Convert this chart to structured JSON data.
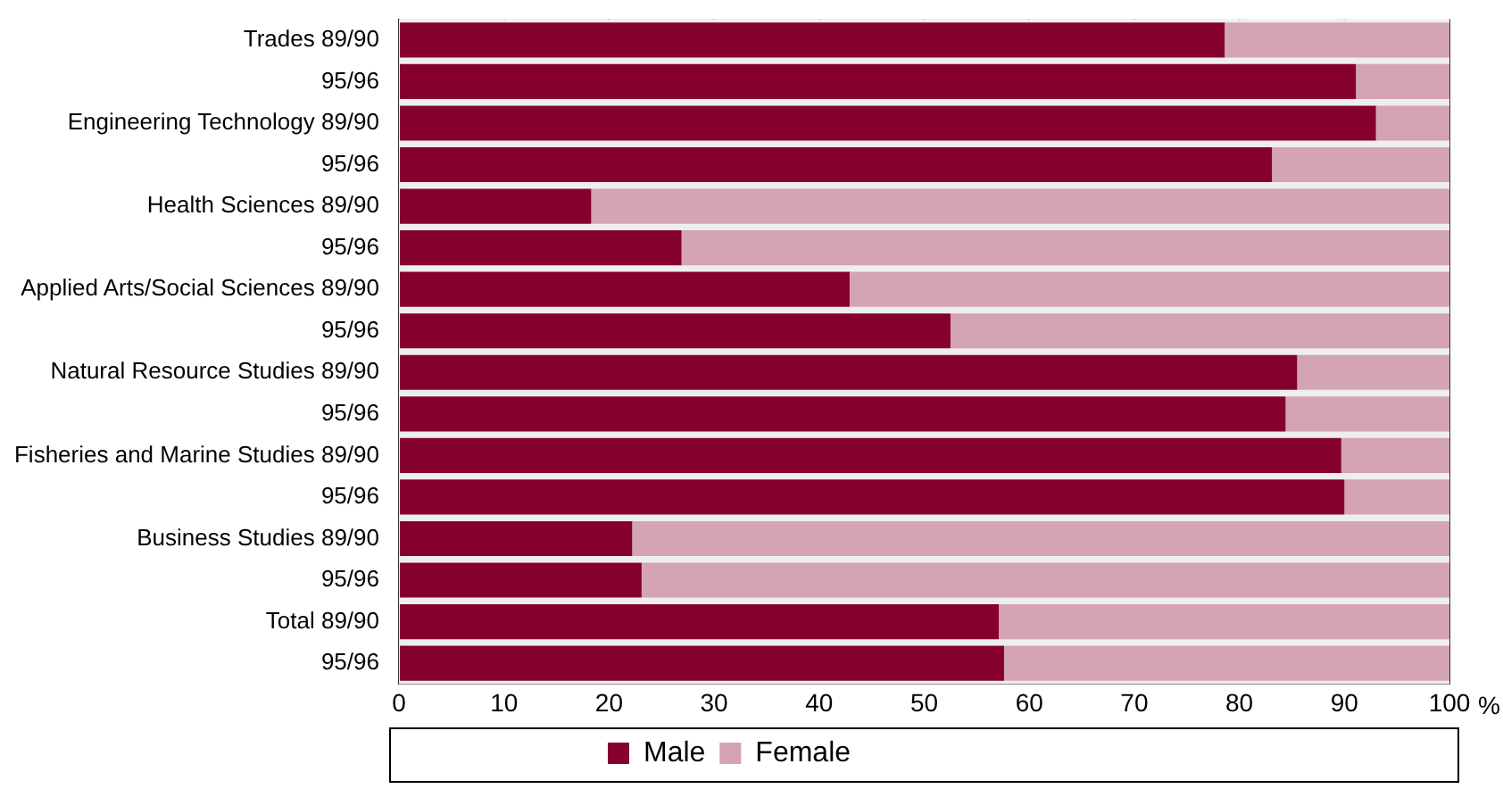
{
  "chart_data": {
    "type": "bar",
    "orientation": "horizontal",
    "stacked": true,
    "categories": [
      "Trades 89/90",
      "95/96",
      "Engineering Technology 89/90",
      "95/96",
      "Health Sciences 89/90",
      "95/96",
      "Applied Arts/Social Sciences 89/90",
      "95/96",
      "Natural Resource Studies 89/90",
      "95/96",
      "Fisheries and Marine Studies 89/90",
      "95/96",
      "Business Studies 89/90",
      "95/96",
      "Total 89/90",
      "95/96"
    ],
    "series": [
      {
        "name": "Male",
        "color": "#85002d",
        "values": [
          78.6,
          91.1,
          93.0,
          83.1,
          18.3,
          26.9,
          42.9,
          52.5,
          85.5,
          84.4,
          89.7,
          90.0,
          22.2,
          23.1,
          57.1,
          57.6
        ]
      },
      {
        "name": "Female",
        "color": "#d4a3b5",
        "values": [
          21.4,
          8.9,
          7.0,
          16.9,
          81.7,
          73.1,
          57.1,
          47.5,
          14.5,
          15.6,
          10.3,
          10.0,
          77.8,
          76.9,
          42.9,
          42.4
        ]
      }
    ],
    "xlabel": "%",
    "xlim": [
      0,
      100
    ],
    "xticks": [
      0,
      10,
      20,
      30,
      40,
      50,
      60,
      70,
      80,
      90,
      100
    ],
    "grid": "x",
    "legend": "bottom"
  }
}
